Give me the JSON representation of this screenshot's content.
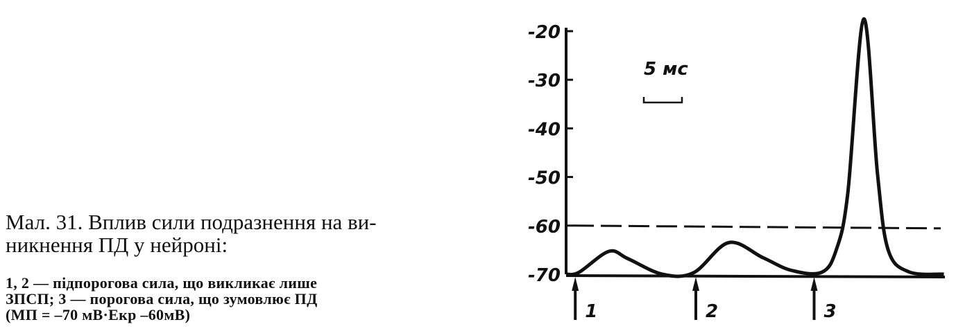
{
  "caption": {
    "title_line1": "Мал. 31. Вплив сили подразнення на ви-",
    "title_line2": "никнення ПД у нейроні:",
    "desc_line1": "1, 2 — підпорогова сила, що викликає лише",
    "desc_line2": "ЗПСП; 3 — порогова сила, що зумовлює ПД",
    "desc_line3": "(МП = –70 мВ·Eкр –60мВ)"
  },
  "chart_data": {
    "type": "line",
    "title": "",
    "xlabel": "",
    "ylabel": "",
    "ylim": [
      -70,
      -20
    ],
    "yticks": [
      -20,
      -30,
      -40,
      -50,
      -60,
      -70
    ],
    "ytick_labels": [
      "-20",
      "-30",
      "-40",
      "-50",
      "-60",
      "-70"
    ],
    "scale_bar_label": "5 мс",
    "scale_bar_ms": 5,
    "threshold": {
      "value": -60,
      "style": "dashed"
    },
    "baseline": -70,
    "stimuli": [
      {
        "label": "1",
        "t": 1.2
      },
      {
        "label": "2",
        "t": 17
      },
      {
        "label": "3",
        "t": 32.5
      }
    ],
    "series": [
      {
        "points": [
          [
            0,
            -70
          ],
          [
            1.7,
            -69.6
          ],
          [
            5.6,
            -65.3
          ],
          [
            8.1,
            -66.8
          ],
          [
            12.6,
            -70
          ],
          [
            16.7,
            -69.7
          ],
          [
            21.3,
            -63.5
          ],
          [
            25.8,
            -66.6
          ],
          [
            29.5,
            -69.2
          ],
          [
            33.5,
            -69.6
          ],
          [
            35.4,
            -65
          ],
          [
            36.9,
            -53.5
          ],
          [
            39,
            -17.5
          ],
          [
            40.8,
            -49.3
          ],
          [
            42.2,
            -65
          ],
          [
            44.9,
            -69.5
          ],
          [
            49.5,
            -70
          ]
        ]
      }
    ],
    "color": "#111111"
  }
}
